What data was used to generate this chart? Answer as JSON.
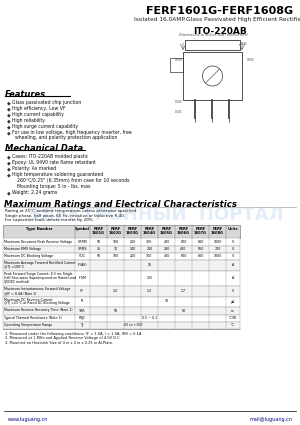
{
  "title": "FERF1601G-FERF1608G",
  "subtitle": "Isolated 16.0AMP.Glass Passivated High Efficient Rectifiers",
  "package": "ITO-220AB",
  "features_title": "Features",
  "features": [
    "Glass passivated chip junction",
    "High efficiency, Low VF",
    "High current capability",
    "High reliability",
    "High surge current capability",
    "For use in low voltage, high frequency inverter, free\n  wheeling, and polarity protection application"
  ],
  "mech_title": "Mechanical Data",
  "mech_items": [
    "Cases: ITO-220AB molded plastic",
    "Epoxy: UL 94V0 rate flame retardant",
    "Polarity: As marked",
    "High temperature soldering guaranteed",
    "260°C/0.25\" (6.35mm) from case for 10 seconds",
    "Mounting torque: 5 in - Ibs. max",
    "Weight: 2.24 grams"
  ],
  "dim_note": "Dimensions in inches and (millimeters)",
  "max_ratings_title": "Maximum Ratings and Electrical Characteristics",
  "max_ratings_notes": [
    "Rating at 25°C ambient temperature unless otherwise specified.",
    "Single phase, half wave, 60 Hz, resistive or Inductive R-40.",
    "For capacitive load, derate current by 20%"
  ],
  "table_headers": [
    "Type Number",
    "Symbol",
    "FERF\n1601G",
    "FERF\n1602G",
    "FERF\n1603G",
    "FERF\n1604G",
    "FERF\n1605G",
    "FERF\n1606G",
    "FERF\n1607G",
    "FERF\n1608G",
    "Units"
  ],
  "table_rows": [
    [
      "Maximum Recurrent Peak Reverse Voltage",
      "VRRM",
      "50",
      "100",
      "200",
      "300",
      "400",
      "600",
      "800",
      "1000",
      "V"
    ],
    [
      "Maximum RMS Voltage",
      "VRMS",
      "35",
      "70",
      "140",
      "210",
      "280",
      "420",
      "560",
      "700",
      "V"
    ],
    [
      "Maximum DC Blocking Voltage",
      "VDC",
      "50",
      "100",
      "200",
      "300",
      "400",
      "600",
      "800",
      "1000",
      "V"
    ],
    [
      "Maximum Average Forward Rectified Current\n@TJ =100°C",
      "IF(AV)",
      "",
      "",
      "",
      "16",
      "",
      "",
      "",
      "",
      "A"
    ],
    [
      "Peak Forward Surge Current, 8.3 ms Single\nHalf Sine-wave Superimposed on Rated Load\n(JEDEC method)",
      "IFSM",
      "",
      "",
      "",
      "125",
      "",
      "",
      "",
      "",
      "A"
    ],
    [
      "Maximum Instantaneous Forward Voltage\n@IF = 8.0A (Note 1)",
      "VF",
      "",
      "1.0",
      "",
      "1.3",
      "",
      "1.7",
      "",
      "",
      "V"
    ],
    [
      "Maximum DC Reverse Current\n@TJ =25°C at Rated DC Blocking Voltage",
      "IR",
      "",
      "",
      "",
      "",
      "10",
      "",
      "",
      "",
      "μA"
    ],
    [
      "Maximum Reverse Recovery Time (Note 1)",
      "TRR",
      "",
      "50",
      "",
      "",
      "",
      "80",
      "",
      "",
      "ns"
    ],
    [
      "Typical Thermal Resistance (Note 3)",
      "RθJC",
      "",
      "",
      "",
      "0.5 ~ 0.1",
      "",
      "",
      "",
      "",
      "°C/W"
    ],
    [
      "Operating Temperature Range",
      "TJ",
      "",
      "",
      "-65 to +150",
      "",
      "",
      "",
      "",
      "",
      "°C"
    ]
  ],
  "notes": [
    "1. Measured under the following conditions: IF = 1.0A, I = 1.0A, IRR = 0.1A.",
    "2. Measured at 1 MHz and Applied Reverse Voltage of 4.0V D.C",
    "3. Mounted on Heatsink Size of 4 in x 4 in x 0.25 in Al-Plate."
  ],
  "website": "www.luguang.cn",
  "email": "mail@luguang.cn",
  "watermark": "ЭЛЕКТРОННЫЙ  ПОРТАЛ",
  "bg_color": "#ffffff"
}
